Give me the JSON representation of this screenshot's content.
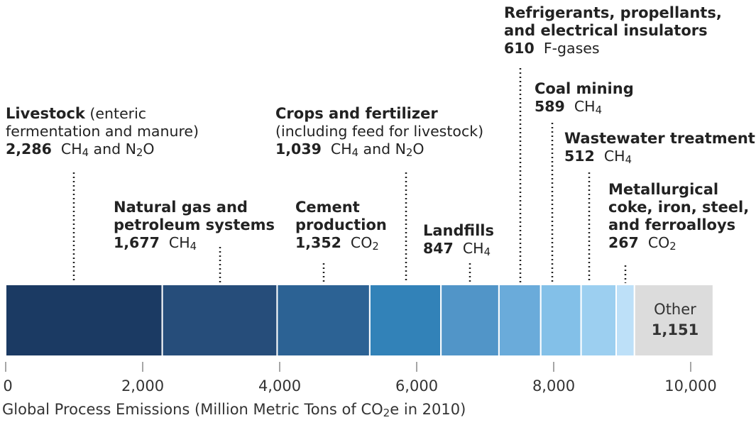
{
  "chart_data": {
    "type": "bar",
    "orientation": "horizontal-stacked",
    "xlabel": "Global Process Emissions (Million Metric Tons of CO2e in 2010)",
    "xlabel_pre": "Global Process Emissions (Million Metric Tons of CO",
    "xlabel_sub": "2",
    "xlabel_post": "e in 2010)",
    "xlim": [
      0,
      10000
    ],
    "xticks": [
      0,
      2000,
      4000,
      6000,
      8000,
      10000
    ],
    "xtick_labels": [
      "0",
      "2,000",
      "4,000",
      "6,000",
      "8,000",
      "10,000"
    ],
    "grid": false,
    "segments": [
      {
        "category": "Livestock",
        "note": "(enteric fermentation and manure)",
        "value": 2286,
        "value_label": "2,286",
        "gas_pre": "CH",
        "gas_sub": "4",
        "gas_mid": " and N",
        "gas_sub2": "2",
        "gas_post": "O",
        "color": "#1b3a63"
      },
      {
        "category": "Natural gas and petroleum systems",
        "note": "",
        "value": 1677,
        "value_label": "1,677",
        "gas_pre": "CH",
        "gas_sub": "4",
        "gas_mid": "",
        "gas_sub2": "",
        "gas_post": "",
        "color": "#264d7a"
      },
      {
        "category": "Cement production",
        "note": "",
        "value": 1352,
        "value_label": "1,352",
        "gas_pre": "CO",
        "gas_sub": "2",
        "gas_mid": "",
        "gas_sub2": "",
        "gas_post": "",
        "color": "#2c6294"
      },
      {
        "category": "Crops and fertilizer",
        "note": "(including feed for livestock)",
        "value": 1039,
        "value_label": "1,039",
        "gas_pre": "CH",
        "gas_sub": "4",
        "gas_mid": " and N",
        "gas_sub2": "2",
        "gas_post": "O",
        "color": "#3282b8"
      },
      {
        "category": "Landfills",
        "note": "",
        "value": 847,
        "value_label": "847",
        "gas_pre": "CH",
        "gas_sub": "4",
        "gas_mid": "",
        "gas_sub2": "",
        "gas_post": "",
        "color": "#5195c8"
      },
      {
        "category": "Refrigerants, propellants, and electrical insulators",
        "note": "",
        "value": 610,
        "value_label": "610",
        "gas_pre": "F-gases",
        "gas_sub": "",
        "gas_mid": "",
        "gas_sub2": "",
        "gas_post": "",
        "color": "#6aabda"
      },
      {
        "category": "Coal mining",
        "note": "",
        "value": 589,
        "value_label": "589",
        "gas_pre": "CH",
        "gas_sub": "4",
        "gas_mid": "",
        "gas_sub2": "",
        "gas_post": "",
        "color": "#83c0e8"
      },
      {
        "category": "Wastewater treatment",
        "note": "",
        "value": 512,
        "value_label": "512",
        "gas_pre": "CH",
        "gas_sub": "4",
        "gas_mid": "",
        "gas_sub2": "",
        "gas_post": "",
        "color": "#9ccff0"
      },
      {
        "category": "Metallurgical coke, iron, steel, and ferroalloys",
        "note": "",
        "value": 267,
        "value_label": "267",
        "gas_pre": "CO",
        "gas_sub": "2",
        "gas_mid": "",
        "gas_sub2": "",
        "gas_post": "",
        "color": "#bde0f8"
      },
      {
        "category": "Other",
        "note": "",
        "value": 1151,
        "value_label": "1,151",
        "gas_pre": "",
        "gas_sub": "",
        "gas_mid": "",
        "gas_sub2": "",
        "gas_post": "",
        "color": "#dcdcdc"
      }
    ]
  }
}
